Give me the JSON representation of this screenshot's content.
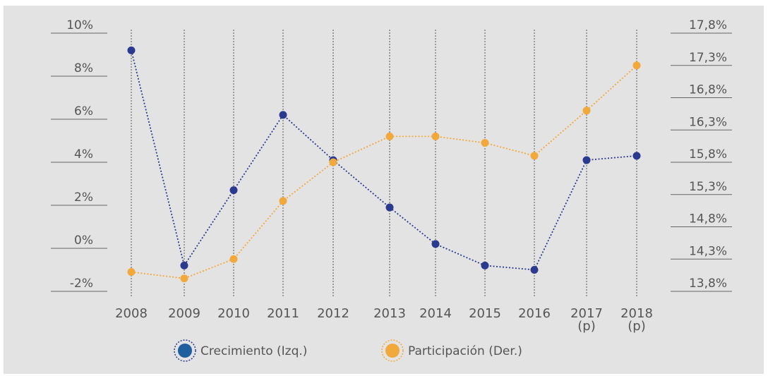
{
  "chart_data": {
    "type": "line",
    "categories": [
      "2008",
      "2009",
      "2010",
      "2011",
      "2012",
      "2013",
      "2014",
      "2015",
      "2016",
      "2017\n(p)",
      "2018\n(p)"
    ],
    "series": [
      {
        "name": "Crecimiento (Izq.)",
        "color": "#2b3a8f",
        "values": [
          9.2,
          -0.8,
          2.7,
          6.2,
          4.1,
          1.9,
          0.2,
          -0.8,
          -1.0,
          4.1,
          4.3
        ]
      },
      {
        "name": "Participación (Der.)",
        "color": "#f2a93b",
        "axis": "y2",
        "values": [
          14.1,
          14.0,
          14.3,
          15.2,
          15.8,
          16.2,
          16.2,
          16.1,
          15.9,
          16.6,
          17.3
        ]
      }
    ],
    "ylim": [
      -2,
      10
    ],
    "yticks": [
      {
        "value": 10,
        "label": "10%"
      },
      {
        "value": 8,
        "label": "8%"
      },
      {
        "value": 6,
        "label": "6%"
      },
      {
        "value": 4,
        "label": "4%"
      },
      {
        "value": 2,
        "label": "2%"
      },
      {
        "value": 0,
        "label": "0%"
      },
      {
        "value": -2,
        "label": "-2%"
      }
    ],
    "y2lim": [
      13.8,
      17.8
    ],
    "y2ticks": [
      {
        "value": 17.8,
        "label": "17,8%"
      },
      {
        "value": 17.3,
        "label": "17,3%"
      },
      {
        "value": 16.8,
        "label": "16,8%"
      },
      {
        "value": 16.3,
        "label": "16,3%"
      },
      {
        "value": 15.8,
        "label": "15,8%"
      },
      {
        "value": 15.3,
        "label": "15,3%"
      },
      {
        "value": 14.8,
        "label": "14,8%"
      },
      {
        "value": 14.3,
        "label": "14,3%"
      },
      {
        "value": 13.8,
        "label": "13,8%"
      }
    ],
    "grid": true
  }
}
